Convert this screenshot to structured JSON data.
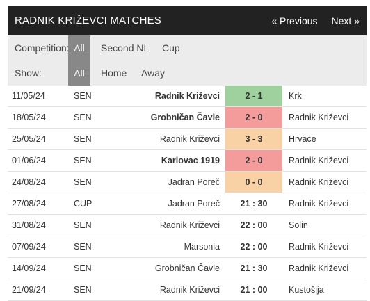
{
  "header": {
    "title": "RADNIK KRIŽEVCI MATCHES",
    "prev_label": "« Previous",
    "next_label": "Next »"
  },
  "filters": {
    "competition_label": "Competition:",
    "competition_options": [
      "All",
      "Second NL",
      "Cup"
    ],
    "competition_selected": "All",
    "show_label": "Show:",
    "show_options": [
      "All",
      "Home",
      "Away"
    ],
    "show_selected": "All"
  },
  "colors": {
    "win": "#9fd19f",
    "loss": "#f49b9b",
    "draw": "#f8d1a4",
    "header_bg": "#222222",
    "filter_bg": "#ececec",
    "active_bg": "#888888"
  },
  "matches": [
    {
      "date": "11/05/24",
      "competition": "SEN",
      "home": "Radnik Križevci",
      "home_bold": true,
      "score": "2 - 1",
      "result": "win",
      "away": "Krk",
      "away_bold": false
    },
    {
      "date": "18/05/24",
      "competition": "SEN",
      "home": "Grobničan Čavle",
      "home_bold": true,
      "score": "2 - 0",
      "result": "loss",
      "away": "Radnik Križevci",
      "away_bold": false
    },
    {
      "date": "25/05/24",
      "competition": "SEN",
      "home": "Radnik Križevci",
      "home_bold": false,
      "score": "3 - 3",
      "result": "draw",
      "away": "Hrvace",
      "away_bold": false
    },
    {
      "date": "01/06/24",
      "competition": "SEN",
      "home": "Karlovac 1919",
      "home_bold": true,
      "score": "2 - 0",
      "result": "loss",
      "away": "Radnik Križevci",
      "away_bold": false
    },
    {
      "date": "24/08/24",
      "competition": "SEN",
      "home": "Jadran Poreč",
      "home_bold": false,
      "score": "0 - 0",
      "result": "draw",
      "away": "Radnik Križevci",
      "away_bold": false
    },
    {
      "date": "27/08/24",
      "competition": "CUP",
      "home": "Jadran Poreč",
      "home_bold": false,
      "score": "21 : 30",
      "result": "none",
      "away": "Radnik Križevci",
      "away_bold": false
    },
    {
      "date": "31/08/24",
      "competition": "SEN",
      "home": "Radnik Križevci",
      "home_bold": false,
      "score": "22 : 00",
      "result": "none",
      "away": "Solin",
      "away_bold": false
    },
    {
      "date": "07/09/24",
      "competition": "SEN",
      "home": "Marsonia",
      "home_bold": false,
      "score": "22 : 00",
      "result": "none",
      "away": "Radnik Križevci",
      "away_bold": false
    },
    {
      "date": "14/09/24",
      "competition": "SEN",
      "home": "Grobničan Čavle",
      "home_bold": false,
      "score": "21 : 30",
      "result": "none",
      "away": "Radnik Križevci",
      "away_bold": false
    },
    {
      "date": "21/09/24",
      "competition": "SEN",
      "home": "Radnik Križevci",
      "home_bold": false,
      "score": "21 : 00",
      "result": "none",
      "away": "Kustošija",
      "away_bold": false
    }
  ]
}
